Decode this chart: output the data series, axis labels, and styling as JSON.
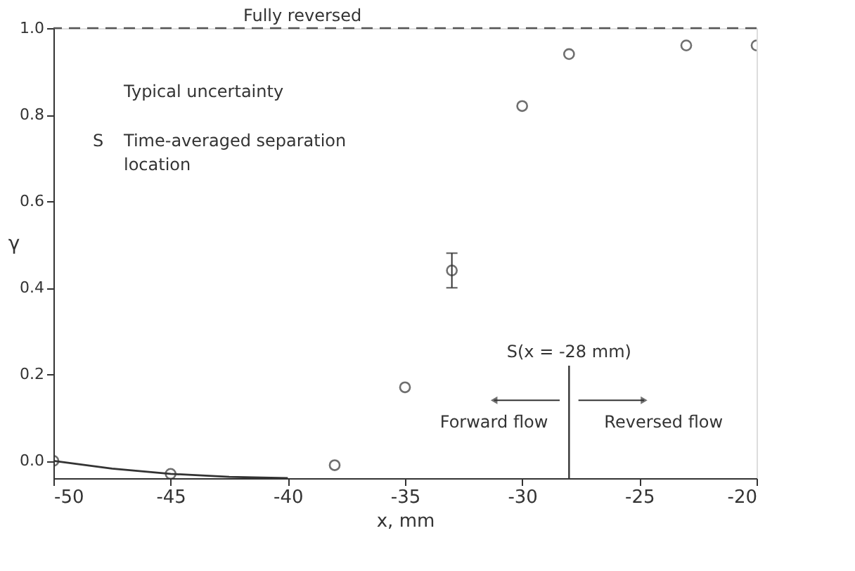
{
  "chart_data": {
    "type": "scatter",
    "xlabel": "x, mm",
    "ylabel": "γ",
    "xlim": [
      -50,
      -20
    ],
    "xticks": [
      -50,
      -45,
      -40,
      -35,
      -30,
      -25,
      -20
    ],
    "ylim": [
      -0.04,
      1.0
    ],
    "yticks": [
      {
        "value": 0,
        "label": "0.0"
      },
      {
        "value": 0.2,
        "label": "0.2"
      },
      {
        "value": 0.4,
        "label": "0.4"
      },
      {
        "value": 0.6,
        "label": "0.6"
      },
      {
        "value": 0.8,
        "label": "0.8"
      },
      {
        "value": 1.0,
        "label": "1.0"
      }
    ],
    "grid": false,
    "marker": "circle",
    "series": [
      {
        "color": "#333333",
        "x": [
          -50,
          -45,
          -38,
          -35,
          -33,
          -30,
          -28,
          -23,
          -20
        ],
        "values": [
          0.0,
          -0.03,
          -0.01,
          0.17,
          0.44,
          0.82,
          0.94,
          0.96,
          0.96
        ],
        "errors": [
          null,
          null,
          null,
          null,
          0.04,
          null,
          null,
          null,
          null
        ]
      },
      {
        "color": "#333333",
        "type": "line",
        "line_style": "solid",
        "marker": "none",
        "x": [
          -50,
          -47.5,
          -45,
          -42.5,
          -40
        ],
        "values": [
          0.0,
          -0.018,
          -0.03,
          -0.037,
          -0.04
        ]
      }
    ],
    "ref_lines": [
      {
        "axis": "y",
        "value": 1.0,
        "label": "Fully reversed",
        "color": "#555555",
        "line_style": "dashed"
      },
      {
        "axis": "x",
        "value": -28,
        "label": "S(x = -28 mm)",
        "color": "#333333",
        "line_style": "solid"
      }
    ],
    "annotations": [
      "Forward flow",
      "Reversed flow",
      "Typical uncertainty",
      "S",
      "Time-averaged separation location"
    ]
  }
}
